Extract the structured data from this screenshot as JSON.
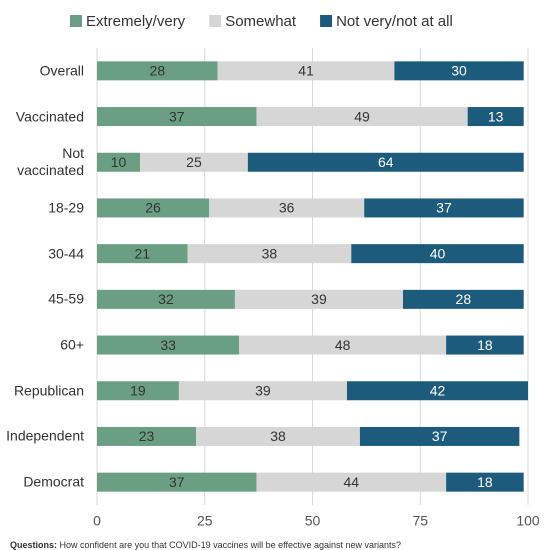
{
  "chart_data": {
    "type": "stacked-bar-horizontal",
    "categories": [
      "Overall",
      "Vaccinated",
      "Not vaccinated",
      "18-29",
      "30-44",
      "45-59",
      "60+",
      "Republican",
      "Independent",
      "Democrat"
    ],
    "series": [
      {
        "name": "Extremely/very",
        "color": "#6b9f84",
        "values": [
          28,
          37,
          10,
          26,
          21,
          32,
          33,
          19,
          23,
          37
        ]
      },
      {
        "name": "Somewhat",
        "color": "#d6d6d6",
        "values": [
          41,
          49,
          25,
          36,
          38,
          39,
          48,
          39,
          38,
          44
        ]
      },
      {
        "name": "Not very/not at all",
        "color": "#1d5b7c",
        "values": [
          30,
          13,
          64,
          37,
          40,
          28,
          18,
          42,
          37,
          18
        ]
      }
    ],
    "xlim": [
      0,
      100
    ],
    "xticks": [
      0,
      25,
      50,
      75,
      100
    ],
    "grid": true,
    "legend": "top",
    "note_label": "Questions:",
    "note": "How confident are you that COVID-19 vaccines will be effective against new variants?"
  }
}
